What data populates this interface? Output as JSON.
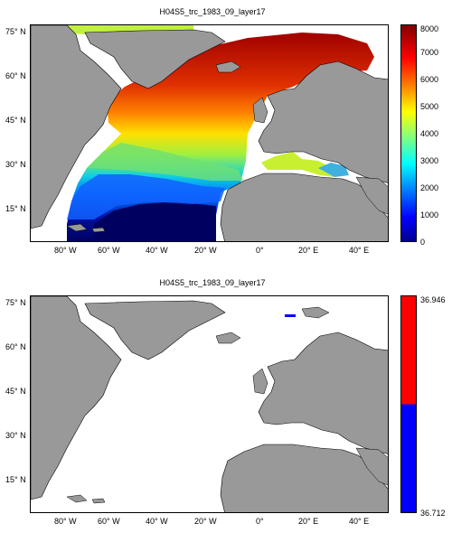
{
  "panels": [
    {
      "title": "H04S5_trc_1983_09_layer17",
      "lat_ticks": [
        "75° N",
        "60° N",
        "45° N",
        "30° N",
        "15° N"
      ],
      "lon_ticks": [
        "80° W",
        "60° W",
        "40° W",
        "20° W",
        "0°",
        "20° E",
        "40° E"
      ],
      "colorbar": {
        "ticks": [
          "8000",
          "7000",
          "6000",
          "5000",
          "4000",
          "3000",
          "2000",
          "1000",
          "0"
        ],
        "range": [
          0,
          8000
        ],
        "colormap": "jet"
      }
    },
    {
      "title": "H04S5_trc_1983_09_layer17",
      "lat_ticks": [
        "75° N",
        "60° N",
        "45° N",
        "30° N",
        "15° N"
      ],
      "lon_ticks": [
        "80° W",
        "60° W",
        "40° W",
        "20° W",
        "0°",
        "20° E",
        "40° E"
      ],
      "colorbar": {
        "ticks": [
          "36.946",
          "36.712"
        ],
        "range": [
          36.712,
          36.946
        ],
        "colors": [
          "#ff0000",
          "#0000ff"
        ]
      }
    }
  ],
  "colors": {
    "land": "#999999",
    "nodata": "#ffffff",
    "coast": "#000000"
  }
}
